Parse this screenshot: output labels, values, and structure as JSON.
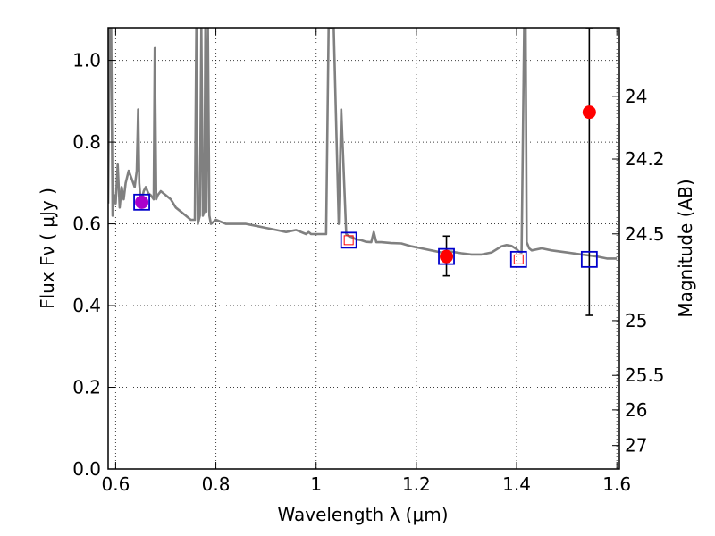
{
  "chart_data": {
    "type": "line",
    "title": "",
    "xlabel": "Wavelength  λ (μm)",
    "ylabel": "Flux  Fν  ( μJy )",
    "y2label": "Magnitude (AB)",
    "xlim": [
      0.585,
      1.605
    ],
    "ylim": [
      0.0,
      1.08
    ],
    "grid": true,
    "x_ticks": [
      0.6,
      0.8,
      1.0,
      1.2,
      1.4,
      1.6
    ],
    "x_tick_labels": [
      "0.6",
      "0.8",
      "1",
      "1.2",
      "1.4",
      "1.6"
    ],
    "y_ticks": [
      0.0,
      0.2,
      0.4,
      0.6,
      0.8,
      1.0
    ],
    "y_tick_labels": [
      "0.0",
      "0.2",
      "0.4",
      "0.6",
      "0.8",
      "1.0"
    ],
    "y2_ticks": [
      24,
      24.2,
      24.5,
      25,
      25.5,
      26,
      27
    ],
    "y2_tick_labels": [
      "24",
      "24.2",
      "24.5",
      "25",
      "25.5",
      "26",
      "27"
    ],
    "colors": {
      "spectrum": "#808080",
      "model_box": "#0000cc",
      "observed": "#ff0000",
      "highlight": "#aa00cc",
      "errorbar": "#000000"
    },
    "series": [
      {
        "kind": "spectrum",
        "x": [
          0.585,
          0.588,
          0.591,
          0.594,
          0.597,
          0.6,
          0.604,
          0.608,
          0.612,
          0.616,
          0.62,
          0.626,
          0.632,
          0.638,
          0.642,
          0.645,
          0.647,
          0.649,
          0.652,
          0.656,
          0.66,
          0.665,
          0.67,
          0.676,
          0.678,
          0.681,
          0.684,
          0.69,
          0.7,
          0.71,
          0.72,
          0.73,
          0.74,
          0.75,
          0.758,
          0.761,
          0.764,
          0.768,
          0.771,
          0.774,
          0.777,
          0.779,
          0.781,
          0.784,
          0.787,
          0.79,
          0.8,
          0.82,
          0.84,
          0.86,
          0.88,
          0.9,
          0.92,
          0.94,
          0.96,
          0.98,
          0.985,
          0.99,
          1.0,
          1.01,
          1.02,
          1.025,
          1.03,
          1.035,
          1.045,
          1.05,
          1.06,
          1.065,
          1.07,
          1.08,
          1.09,
          1.1,
          1.11,
          1.115,
          1.12,
          1.13,
          1.15,
          1.17,
          1.19,
          1.21,
          1.23,
          1.25,
          1.27,
          1.29,
          1.31,
          1.33,
          1.35,
          1.37,
          1.38,
          1.39,
          1.4,
          1.405,
          1.41,
          1.415,
          1.418,
          1.42,
          1.425,
          1.43,
          1.45,
          1.47,
          1.5,
          1.53,
          1.56,
          1.58,
          1.6
        ],
        "y": [
          0.65,
          1.08,
          1.08,
          0.62,
          0.67,
          0.65,
          0.745,
          0.64,
          0.69,
          0.66,
          0.7,
          0.73,
          0.71,
          0.69,
          0.73,
          0.88,
          0.7,
          0.67,
          0.66,
          0.68,
          0.69,
          0.675,
          0.67,
          0.66,
          1.03,
          0.66,
          0.67,
          0.68,
          0.67,
          0.66,
          0.64,
          0.63,
          0.62,
          0.61,
          0.61,
          1.08,
          0.6,
          0.62,
          1.08,
          0.62,
          0.63,
          1.08,
          0.63,
          1.08,
          0.62,
          0.6,
          0.61,
          0.6,
          0.6,
          0.6,
          0.595,
          0.59,
          0.585,
          0.58,
          0.585,
          0.575,
          0.58,
          0.575,
          0.575,
          0.575,
          0.575,
          1.08,
          1.08,
          1.08,
          0.6,
          0.88,
          0.575,
          0.57,
          0.568,
          0.562,
          0.56,
          0.556,
          0.555,
          0.58,
          0.555,
          0.555,
          0.553,
          0.552,
          0.545,
          0.54,
          0.535,
          0.53,
          0.532,
          0.528,
          0.525,
          0.525,
          0.53,
          0.545,
          0.548,
          0.546,
          0.538,
          0.532,
          0.53,
          1.08,
          1.08,
          0.555,
          0.54,
          0.535,
          0.54,
          0.535,
          0.53,
          0.525,
          0.52,
          0.515,
          0.515
        ]
      },
      {
        "kind": "model_boxes",
        "x": [
          0.652,
          1.065,
          1.26,
          1.404,
          1.545
        ],
        "y": [
          0.653,
          0.56,
          0.52,
          0.513,
          0.513
        ]
      },
      {
        "kind": "observed",
        "x": [
          0.652,
          1.26,
          1.545
        ],
        "y": [
          0.653,
          0.52,
          0.873
        ],
        "yerr_low": [
          0.0,
          0.047,
          0.497
        ],
        "yerr_high": [
          0.0,
          0.05,
          0.207
        ]
      },
      {
        "kind": "upper_limits",
        "x": [
          1.065,
          1.404
        ],
        "y": [
          0.56,
          0.513
        ]
      }
    ]
  }
}
